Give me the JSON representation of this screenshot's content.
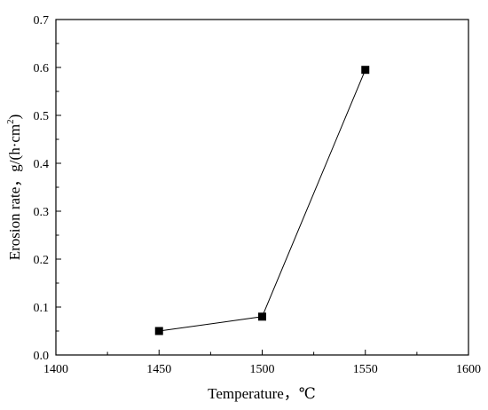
{
  "chart_data": {
    "type": "line",
    "title": "",
    "xlabel": "Temperature，℃",
    "ylabel_parts": [
      "Erosion rate，g/(h·cm",
      "2",
      ")"
    ],
    "xlim": [
      1400,
      1600
    ],
    "ylim": [
      0,
      0.7
    ],
    "x_ticks": [
      1400,
      1450,
      1500,
      1550,
      1600
    ],
    "y_ticks": [
      0.0,
      0.1,
      0.2,
      0.3,
      0.4,
      0.5,
      0.6,
      0.7
    ],
    "x_tick_labels": [
      "1400",
      "1450",
      "1500",
      "1550",
      "1600"
    ],
    "y_tick_labels": [
      "0.0",
      "0.1",
      "0.2",
      "0.3",
      "0.4",
      "0.5",
      "0.6",
      "0.7"
    ],
    "grid": false,
    "legend": "none",
    "series": [
      {
        "marker": "square",
        "color": "#000000",
        "x": [
          1450,
          1500,
          1550
        ],
        "y": [
          0.05,
          0.08,
          0.595
        ]
      }
    ]
  }
}
